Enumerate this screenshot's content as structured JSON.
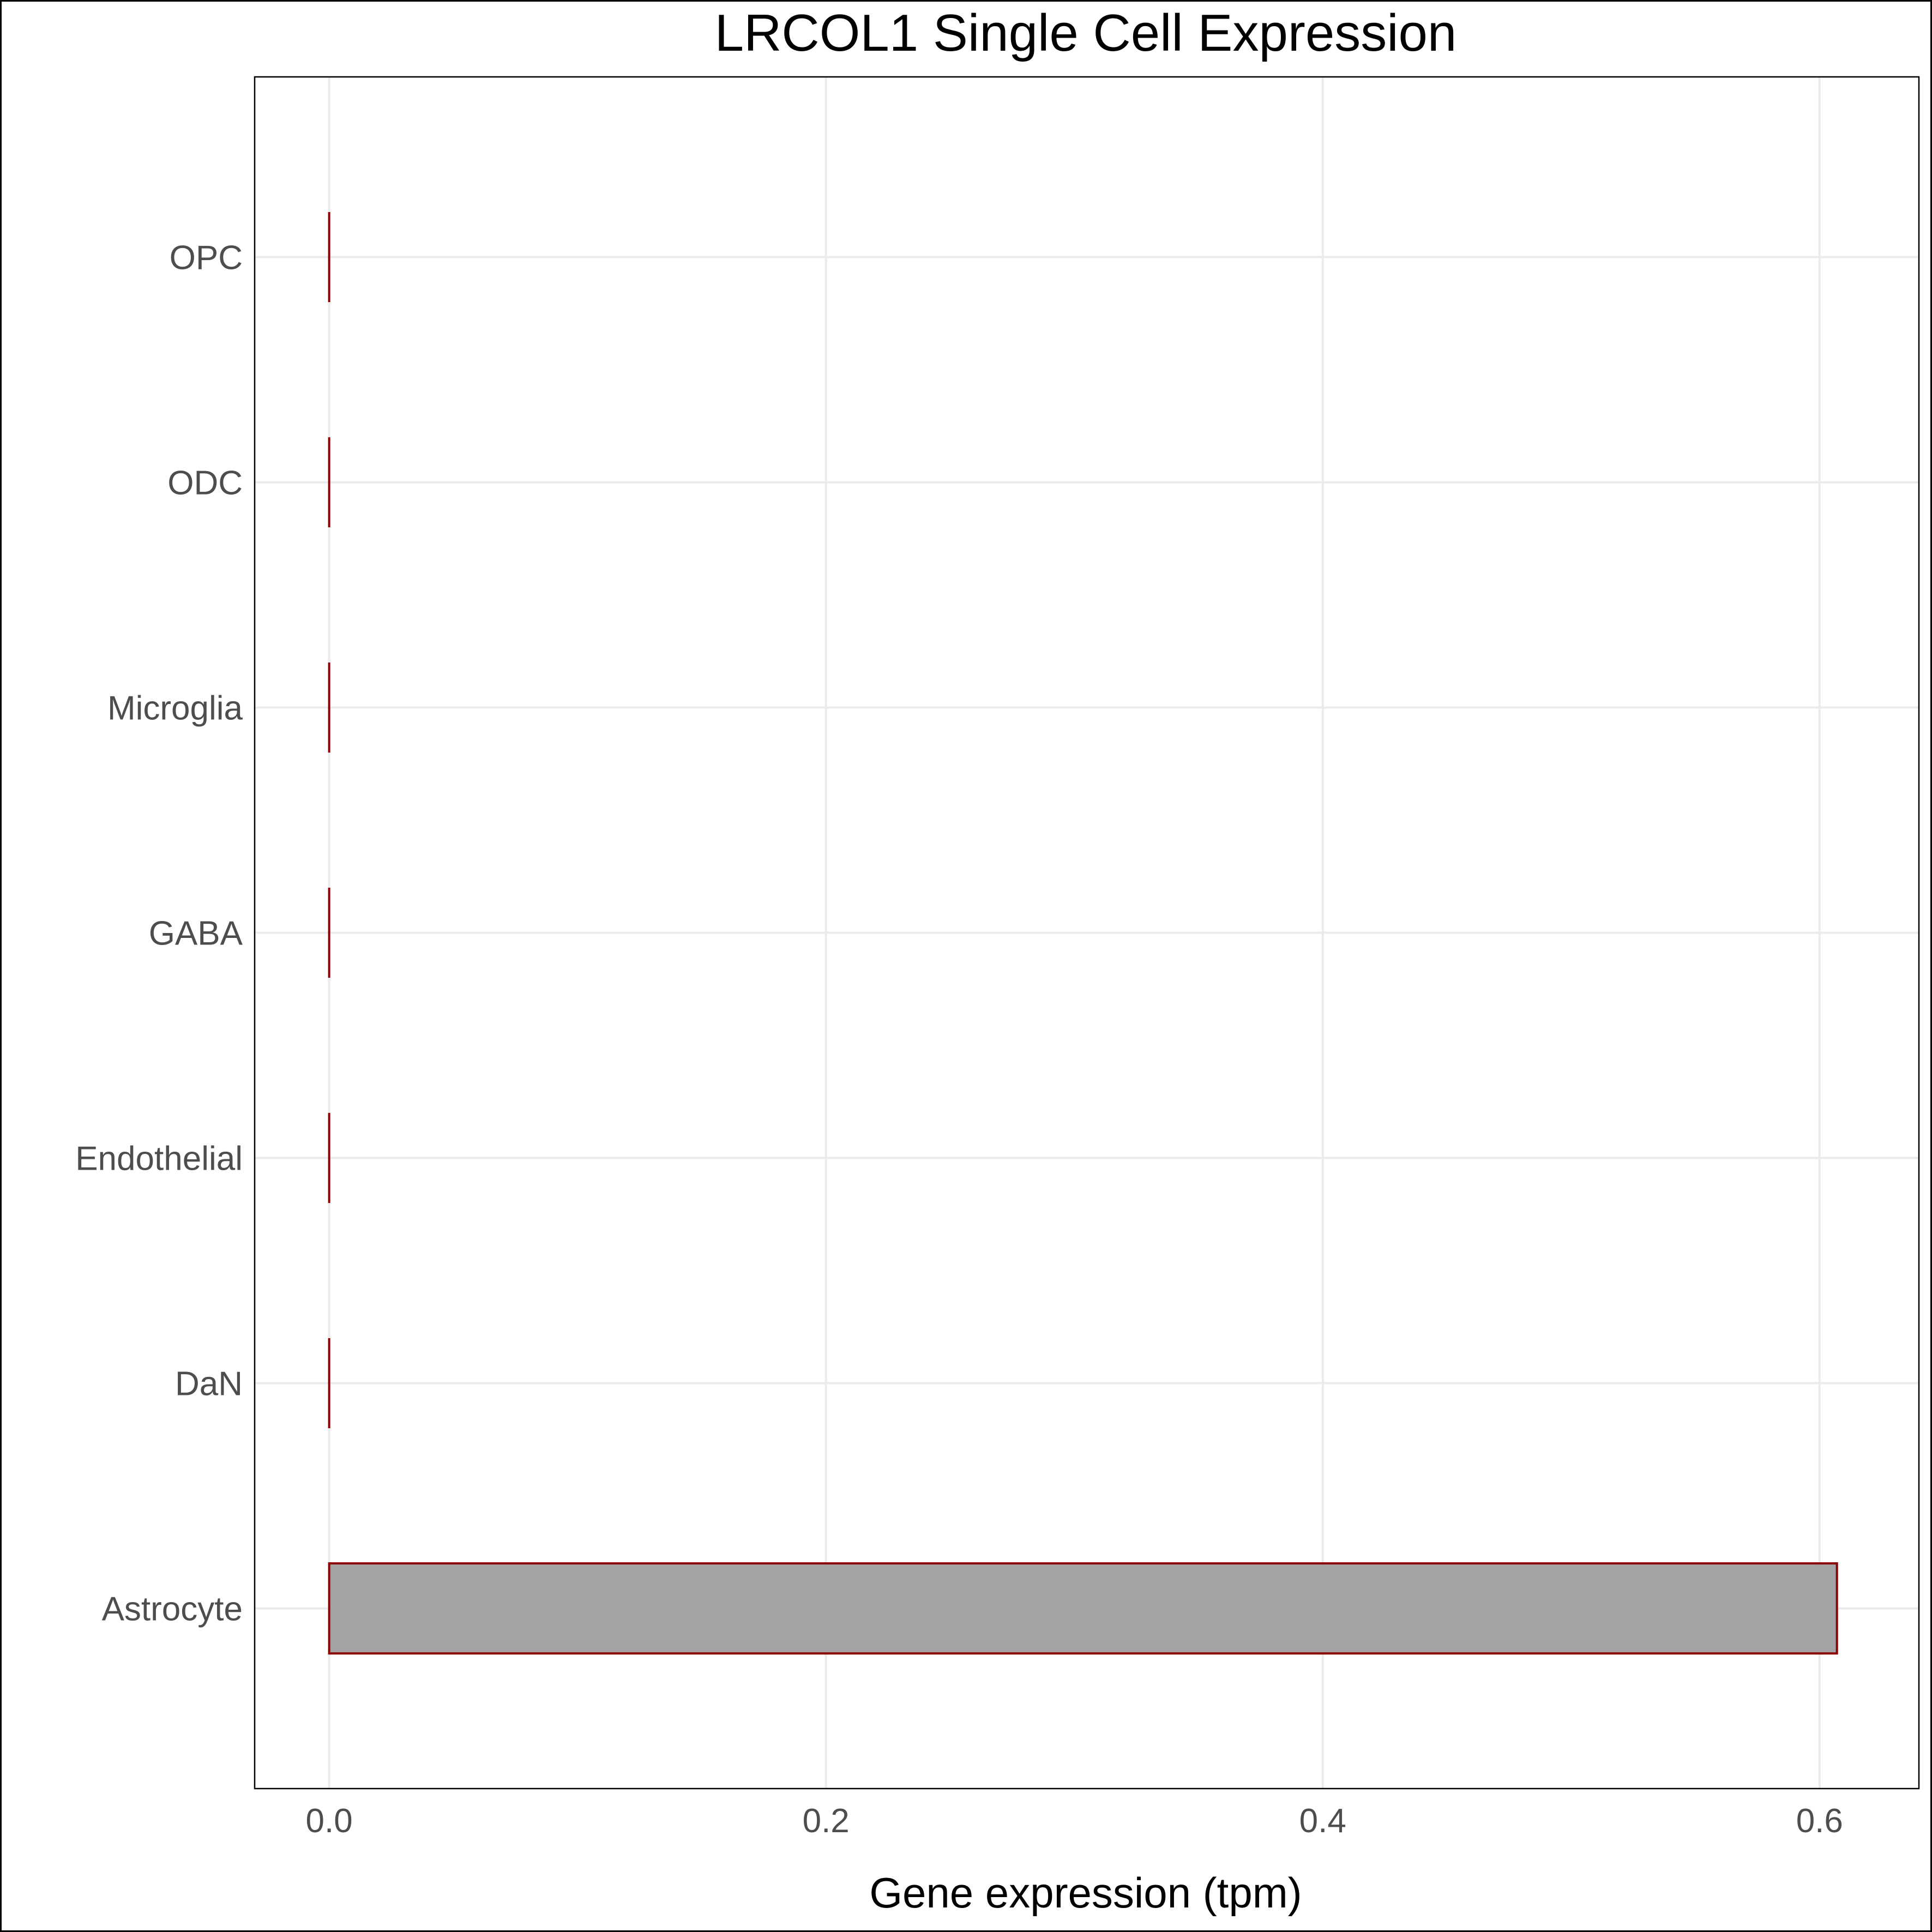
{
  "chart_data": {
    "type": "bar",
    "orientation": "horizontal",
    "title": "LRCOL1 Single Cell Expression",
    "xlabel": "Gene expression (tpm)",
    "ylabel": "",
    "categories": [
      "Astrocyte",
      "DaN",
      "Endothelial",
      "GABA",
      "Microglia",
      "ODC",
      "OPC"
    ],
    "values": [
      0.607,
      0,
      0,
      0,
      0,
      0,
      0
    ],
    "xlim": [
      -0.03,
      0.64
    ],
    "x_ticks": [
      0.0,
      0.2,
      0.4,
      0.6
    ],
    "x_tick_labels": [
      "0.0",
      "0.2",
      "0.4",
      "0.6"
    ],
    "grid": true,
    "legend": "none",
    "colors": {
      "bar_fill": "#a3a3a3",
      "bar_outline": "#8b0000",
      "grid": "#ebebeb",
      "panel_border": "#000000"
    }
  }
}
